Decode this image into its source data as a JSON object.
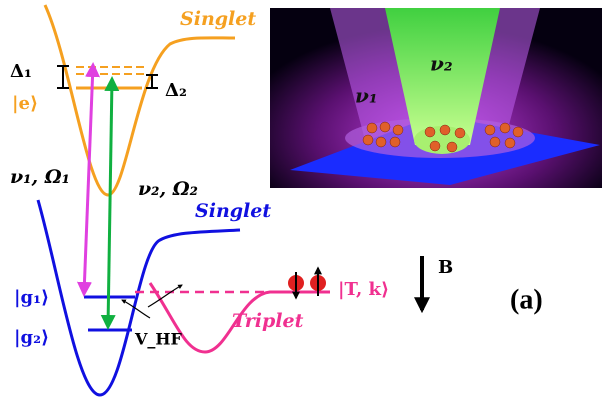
{
  "labels": {
    "singlet_excited": "Singlet",
    "delta1": "Δ₁",
    "delta2": "Δ₂",
    "excited_state": "|e⟩",
    "laser1": "ν₁, Ω₁",
    "laser2": "ν₂, Ω₂",
    "singlet_ground": "Singlet",
    "g1": "|g₁⟩",
    "g2": "|g₂⟩",
    "coupling": "V_HF",
    "triplet": "Triplet",
    "triplet_state": "|T, k⟩",
    "field": "B",
    "panel": "(a)"
  },
  "inset": {
    "beam2": "ν₂",
    "beam1": "ν₁"
  }
}
